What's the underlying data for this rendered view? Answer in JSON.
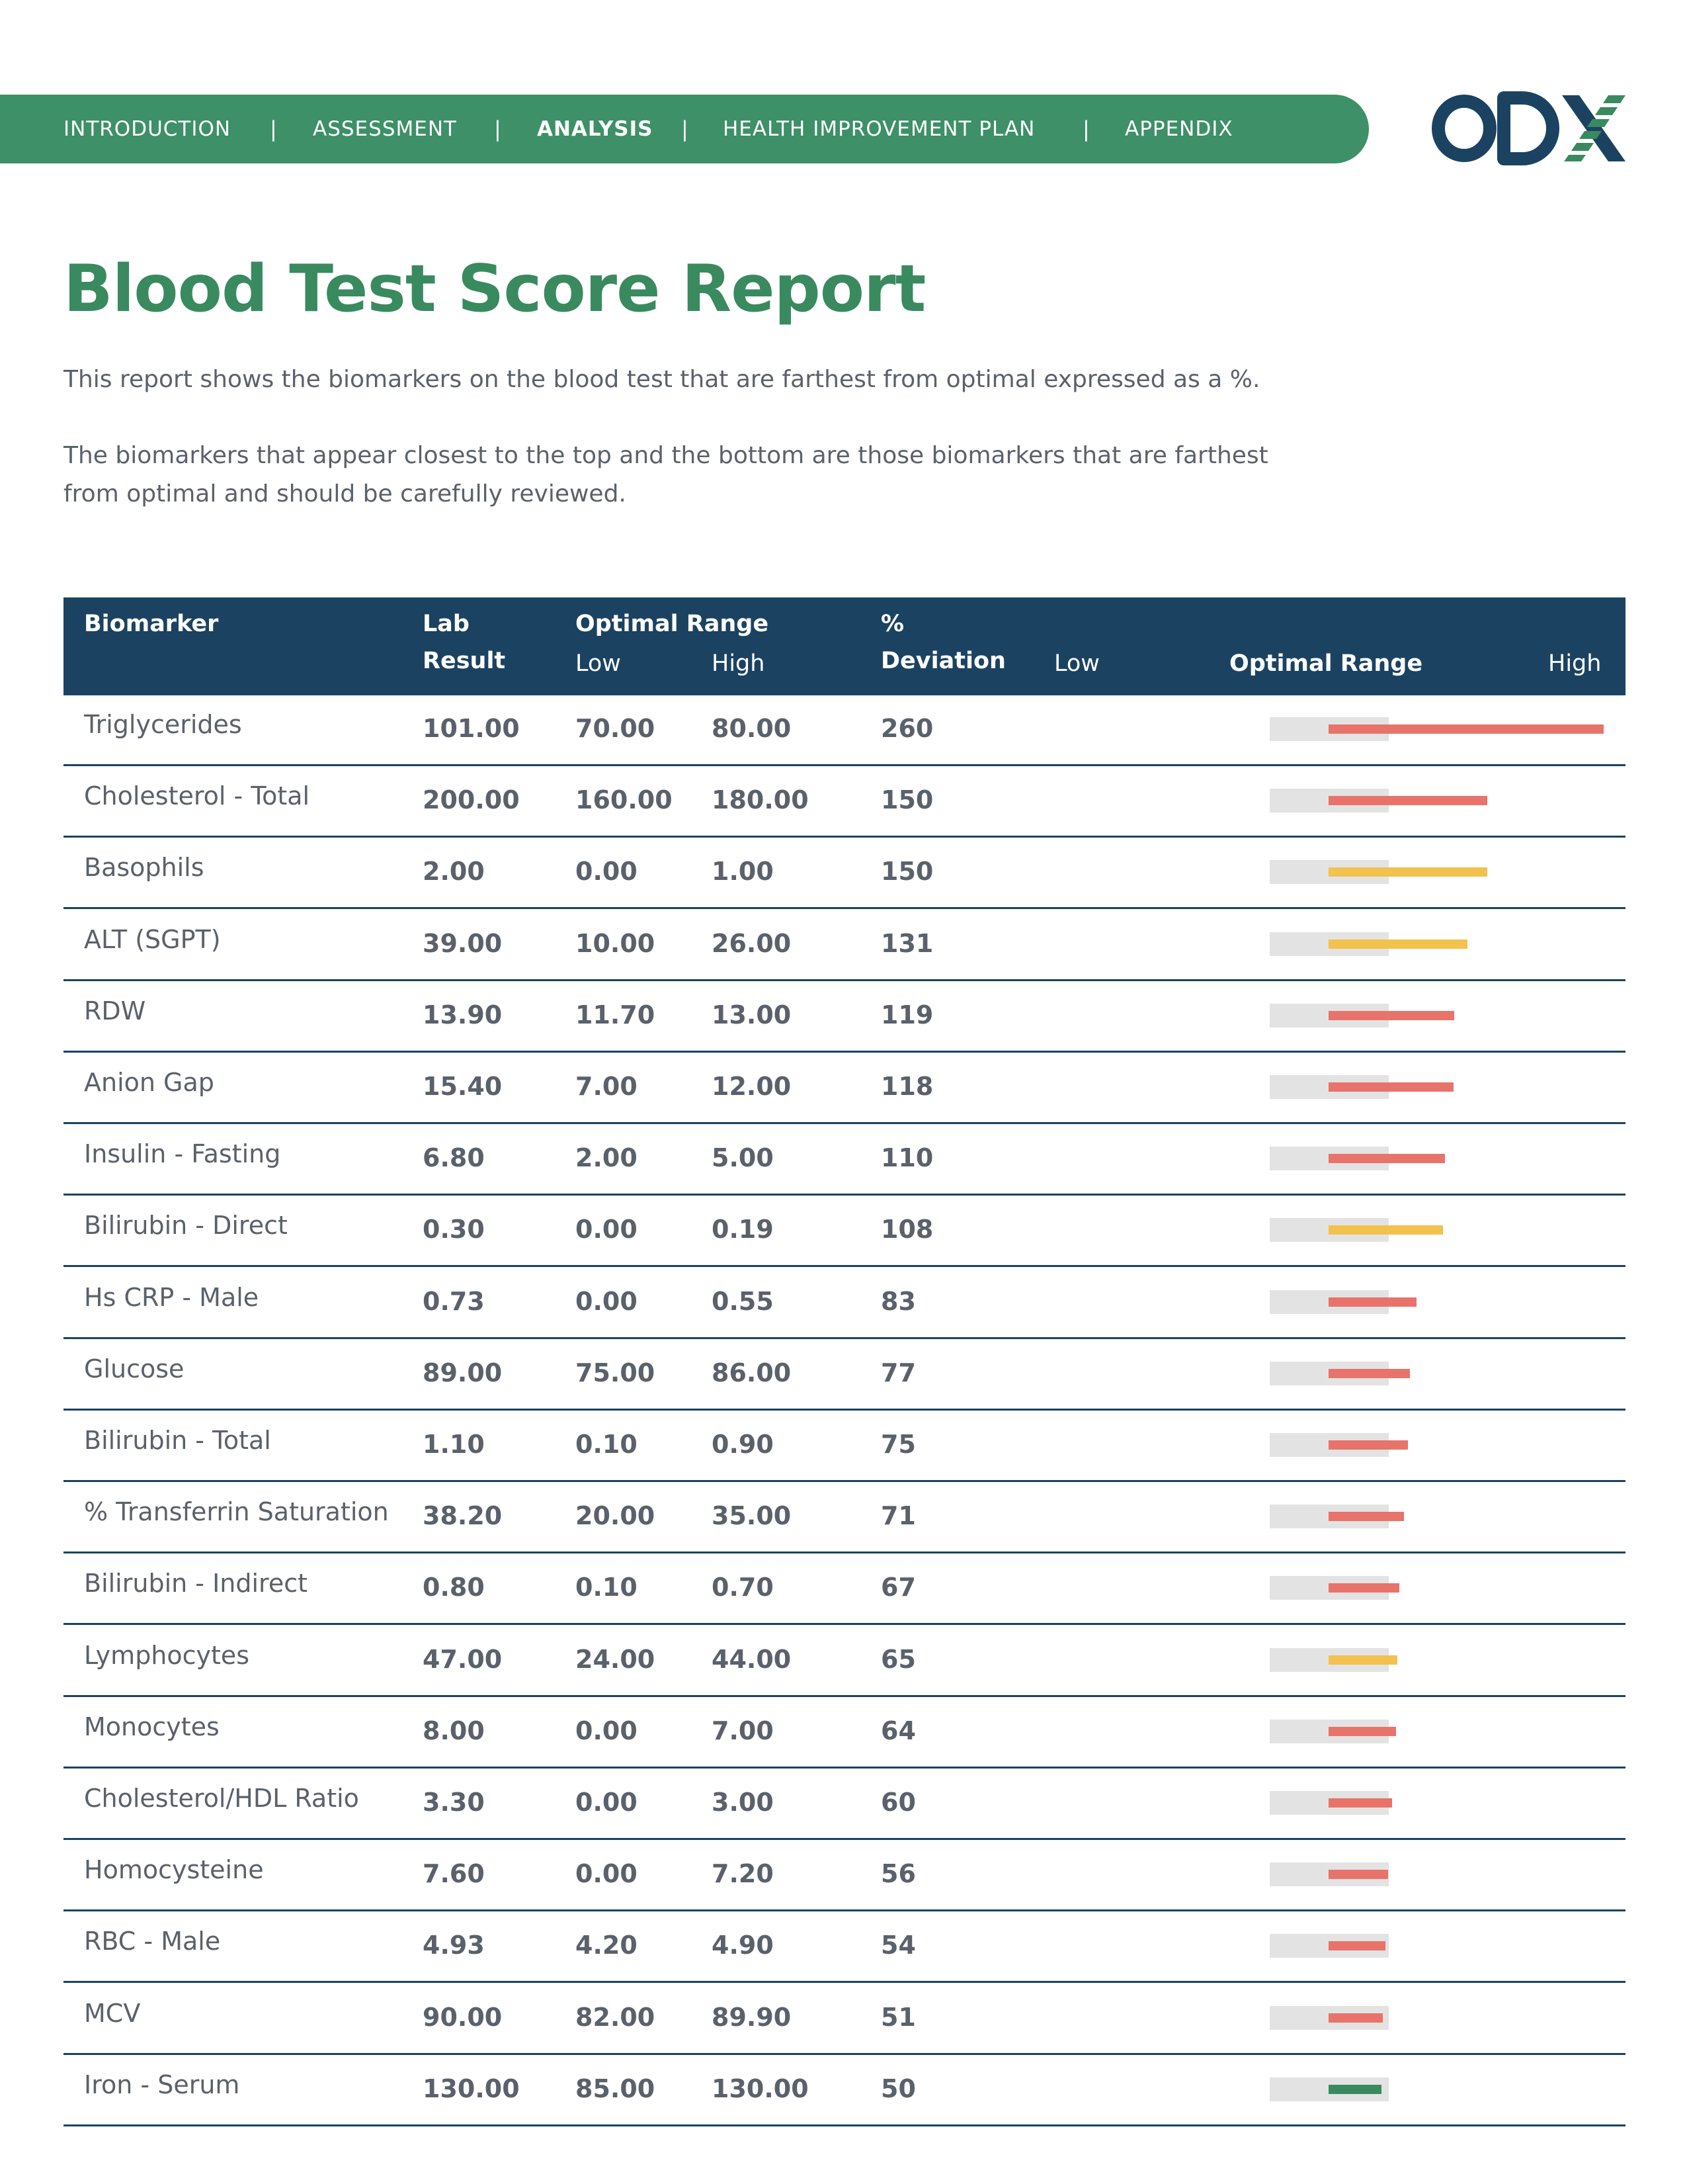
{
  "nav": {
    "items": [
      "INTRODUCTION",
      "ASSESSMENT",
      "ANALYSIS",
      "HEALTH IMPROVEMENT PLAN",
      "APPENDIX"
    ],
    "separator": "|",
    "active": "ANALYSIS"
  },
  "logo": {
    "text": "ODX"
  },
  "title": "Blood Test Score Report",
  "intro": {
    "p1": "This report shows the biomarkers on the blood test that are farthest from optimal expressed as a %.",
    "p2a": "The biomarkers that appear closest to the top and the bottom are those biomarkers that are farthest",
    "p2b": "from optimal and should be carefully reviewed."
  },
  "table": {
    "headers": {
      "biomarker": "Biomarker",
      "lab1": "Lab",
      "lab2": "Result",
      "optimal_range": "Optimal Range",
      "low": "Low",
      "high": "High",
      "pct1": "%",
      "pct2": "Deviation",
      "chart_low": "Low",
      "chart_optimal": "Optimal Range",
      "chart_high": "High"
    },
    "colors": {
      "red": "#e8736a",
      "yellow": "#f2c14e",
      "green": "#3a8a5f",
      "track": "#e3e3e3"
    },
    "rows": [
      {
        "name": "Triglycerides",
        "result": "101.00",
        "low": "70.00",
        "high": "80.00",
        "deviation": "260",
        "color": "red"
      },
      {
        "name": "Cholesterol - Total",
        "result": "200.00",
        "low": "160.00",
        "high": "180.00",
        "deviation": "150",
        "color": "red"
      },
      {
        "name": "Basophils",
        "result": "2.00",
        "low": "0.00",
        "high": "1.00",
        "deviation": "150",
        "color": "yellow"
      },
      {
        "name": "ALT (SGPT)",
        "result": "39.00",
        "low": "10.00",
        "high": "26.00",
        "deviation": "131",
        "color": "yellow"
      },
      {
        "name": "RDW",
        "result": "13.90",
        "low": "11.70",
        "high": "13.00",
        "deviation": "119",
        "color": "red"
      },
      {
        "name": "Anion Gap",
        "result": "15.40",
        "low": "7.00",
        "high": "12.00",
        "deviation": "118",
        "color": "red"
      },
      {
        "name": "Insulin - Fasting",
        "result": "6.80",
        "low": "2.00",
        "high": "5.00",
        "deviation": "110",
        "color": "red"
      },
      {
        "name": "Bilirubin - Direct",
        "result": "0.30",
        "low": "0.00",
        "high": "0.19",
        "deviation": "108",
        "color": "yellow"
      },
      {
        "name": "Hs CRP - Male",
        "result": "0.73",
        "low": "0.00",
        "high": "0.55",
        "deviation": "83",
        "color": "red"
      },
      {
        "name": "Glucose",
        "result": "89.00",
        "low": "75.00",
        "high": "86.00",
        "deviation": "77",
        "color": "red"
      },
      {
        "name": "Bilirubin - Total",
        "result": "1.10",
        "low": "0.10",
        "high": "0.90",
        "deviation": "75",
        "color": "red"
      },
      {
        "name": "% Transferrin Saturation",
        "result": "38.20",
        "low": "20.00",
        "high": "35.00",
        "deviation": "71",
        "color": "red"
      },
      {
        "name": "Bilirubin - Indirect",
        "result": "0.80",
        "low": "0.10",
        "high": "0.70",
        "deviation": "67",
        "color": "red"
      },
      {
        "name": "Lymphocytes",
        "result": "47.00",
        "low": "24.00",
        "high": "44.00",
        "deviation": "65",
        "color": "yellow"
      },
      {
        "name": "Monocytes",
        "result": "8.00",
        "low": "0.00",
        "high": "7.00",
        "deviation": "64",
        "color": "red"
      },
      {
        "name": "Cholesterol/HDL Ratio",
        "result": "3.30",
        "low": "0.00",
        "high": "3.00",
        "deviation": "60",
        "color": "red"
      },
      {
        "name": "Homocysteine",
        "result": "7.60",
        "low": "0.00",
        "high": "7.20",
        "deviation": "56",
        "color": "red"
      },
      {
        "name": "RBC - Male",
        "result": "4.93",
        "low": "4.20",
        "high": "4.90",
        "deviation": "54",
        "color": "red"
      },
      {
        "name": "MCV",
        "result": "90.00",
        "low": "82.00",
        "high": "89.90",
        "deviation": "51",
        "color": "red"
      },
      {
        "name": "Iron - Serum",
        "result": "130.00",
        "low": "85.00",
        "high": "130.00",
        "deviation": "50",
        "color": "green"
      }
    ]
  }
}
